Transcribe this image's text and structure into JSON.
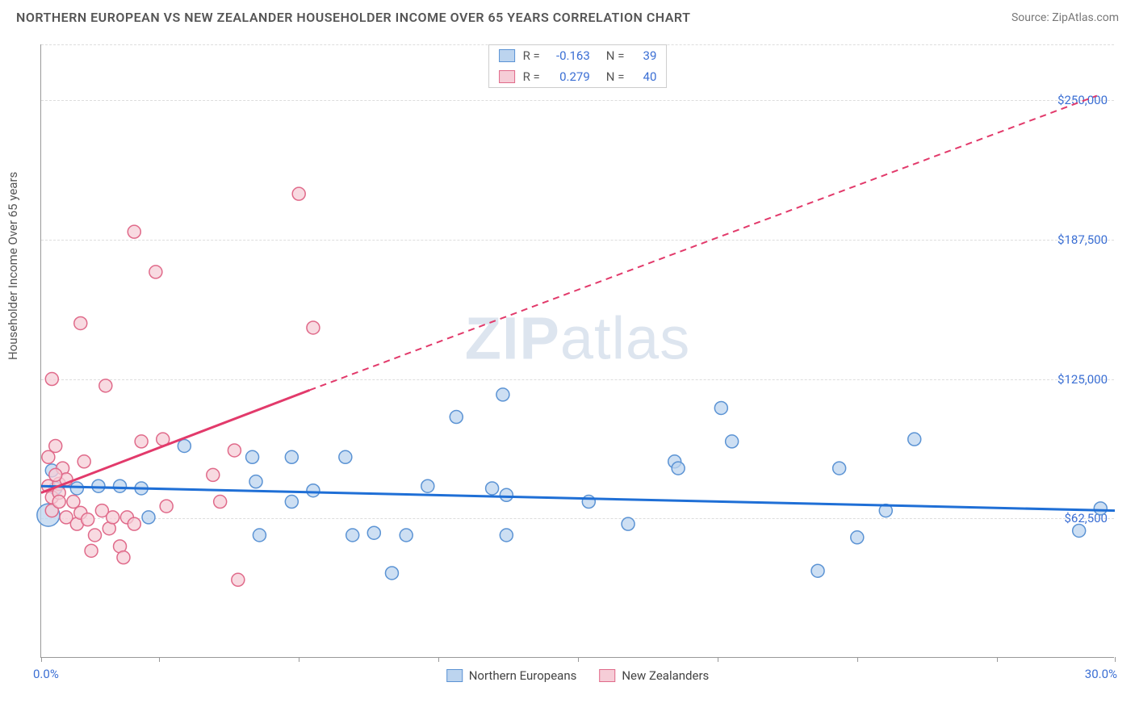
{
  "title": "NORTHERN EUROPEAN VS NEW ZEALANDER HOUSEHOLDER INCOME OVER 65 YEARS CORRELATION CHART",
  "source": "Source: ZipAtlas.com",
  "watermark_zip": "ZIP",
  "watermark_atlas": "atlas",
  "ylabel": "Householder Income Over 65 years",
  "chart": {
    "type": "scatter",
    "background_color": "#ffffff",
    "grid_color": "#dddddd",
    "axis_color": "#999999",
    "text_color": "#555555",
    "value_color": "#3b6fd4",
    "xlim": [
      0,
      30
    ],
    "ylim": [
      0,
      275000
    ],
    "x_tick_positions": [
      0,
      3.3,
      7.2,
      11.1,
      15.0,
      18.9,
      22.8,
      26.7,
      30
    ],
    "x_min_label": "0.0%",
    "x_max_label": "30.0%",
    "y_ticks": [
      {
        "v": 62500,
        "label": "$62,500"
      },
      {
        "v": 125000,
        "label": "$125,000"
      },
      {
        "v": 187500,
        "label": "$187,500"
      },
      {
        "v": 250000,
        "label": "$250,000"
      }
    ],
    "series": [
      {
        "name": "Northern Europeans",
        "fill": "#bcd4ef",
        "stroke": "#5b93d4",
        "line_color": "#1f6fd6",
        "line_width": 3,
        "line_dashed": false,
        "R": "-0.163",
        "N": "39",
        "trend": {
          "x1": 0,
          "y1": 77000,
          "x2": 30,
          "y2": 66000
        },
        "ext": {
          "x1": 30,
          "y1": 66000,
          "x2": 30,
          "y2": 66000
        },
        "points": [
          {
            "x": 0.2,
            "y": 64000,
            "r": 14
          },
          {
            "x": 0.4,
            "y": 76000,
            "r": 8
          },
          {
            "x": 0.3,
            "y": 84000,
            "r": 8
          },
          {
            "x": 4.0,
            "y": 95000,
            "r": 8
          },
          {
            "x": 3.0,
            "y": 63000,
            "r": 8
          },
          {
            "x": 1.0,
            "y": 76000,
            "r": 8
          },
          {
            "x": 1.6,
            "y": 77000,
            "r": 8
          },
          {
            "x": 2.2,
            "y": 77000,
            "r": 8
          },
          {
            "x": 2.8,
            "y": 76000,
            "r": 8
          },
          {
            "x": 5.9,
            "y": 90000,
            "r": 8
          },
          {
            "x": 6.0,
            "y": 79000,
            "r": 8
          },
          {
            "x": 6.1,
            "y": 55000,
            "r": 8
          },
          {
            "x": 7.0,
            "y": 90000,
            "r": 8
          },
          {
            "x": 7.0,
            "y": 70000,
            "r": 8
          },
          {
            "x": 7.6,
            "y": 75000,
            "r": 8
          },
          {
            "x": 8.5,
            "y": 90000,
            "r": 8
          },
          {
            "x": 8.7,
            "y": 55000,
            "r": 8
          },
          {
            "x": 9.3,
            "y": 56000,
            "r": 8
          },
          {
            "x": 9.8,
            "y": 38000,
            "r": 8
          },
          {
            "x": 10.2,
            "y": 55000,
            "r": 8
          },
          {
            "x": 10.8,
            "y": 77000,
            "r": 8
          },
          {
            "x": 11.6,
            "y": 108000,
            "r": 8
          },
          {
            "x": 12.6,
            "y": 76000,
            "r": 8
          },
          {
            "x": 12.9,
            "y": 118000,
            "r": 8
          },
          {
            "x": 13.0,
            "y": 73000,
            "r": 8
          },
          {
            "x": 13.0,
            "y": 55000,
            "r": 8
          },
          {
            "x": 15.3,
            "y": 70000,
            "r": 8
          },
          {
            "x": 16.4,
            "y": 60000,
            "r": 8
          },
          {
            "x": 17.7,
            "y": 88000,
            "r": 8
          },
          {
            "x": 17.8,
            "y": 85000,
            "r": 8
          },
          {
            "x": 19.0,
            "y": 112000,
            "r": 8
          },
          {
            "x": 19.3,
            "y": 97000,
            "r": 8
          },
          {
            "x": 21.7,
            "y": 39000,
            "r": 8
          },
          {
            "x": 22.3,
            "y": 85000,
            "r": 8
          },
          {
            "x": 22.8,
            "y": 54000,
            "r": 8
          },
          {
            "x": 23.6,
            "y": 66000,
            "r": 8
          },
          {
            "x": 24.4,
            "y": 98000,
            "r": 8
          },
          {
            "x": 29.0,
            "y": 57000,
            "r": 8
          },
          {
            "x": 29.6,
            "y": 67000,
            "r": 8
          }
        ]
      },
      {
        "name": "New Zealanders",
        "fill": "#f6cdd7",
        "stroke": "#e06a8a",
        "line_color": "#e23a6b",
        "line_width": 3,
        "line_dashed": false,
        "R": "0.279",
        "N": "40",
        "trend": {
          "x1": 0,
          "y1": 74000,
          "x2": 7.5,
          "y2": 120000
        },
        "ext": {
          "x1": 7.5,
          "y1": 120000,
          "x2": 29.5,
          "y2": 252000
        },
        "points": [
          {
            "x": 0.2,
            "y": 77000,
            "r": 8
          },
          {
            "x": 0.2,
            "y": 90000,
            "r": 8
          },
          {
            "x": 0.3,
            "y": 125000,
            "r": 8
          },
          {
            "x": 0.3,
            "y": 72000,
            "r": 8
          },
          {
            "x": 0.3,
            "y": 66000,
            "r": 8
          },
          {
            "x": 0.4,
            "y": 95000,
            "r": 8
          },
          {
            "x": 0.5,
            "y": 78000,
            "r": 8
          },
          {
            "x": 0.5,
            "y": 74000,
            "r": 8
          },
          {
            "x": 0.5,
            "y": 70000,
            "r": 8
          },
          {
            "x": 0.6,
            "y": 85000,
            "r": 8
          },
          {
            "x": 0.7,
            "y": 80000,
            "r": 8
          },
          {
            "x": 0.7,
            "y": 63000,
            "r": 8
          },
          {
            "x": 0.9,
            "y": 70000,
            "r": 8
          },
          {
            "x": 1.0,
            "y": 60000,
            "r": 8
          },
          {
            "x": 1.1,
            "y": 65000,
            "r": 8
          },
          {
            "x": 1.1,
            "y": 150000,
            "r": 8
          },
          {
            "x": 1.3,
            "y": 62000,
            "r": 8
          },
          {
            "x": 1.4,
            "y": 48000,
            "r": 8
          },
          {
            "x": 1.5,
            "y": 55000,
            "r": 8
          },
          {
            "x": 1.7,
            "y": 66000,
            "r": 8
          },
          {
            "x": 1.8,
            "y": 122000,
            "r": 8
          },
          {
            "x": 1.9,
            "y": 58000,
            "r": 8
          },
          {
            "x": 2.0,
            "y": 63000,
            "r": 8
          },
          {
            "x": 2.2,
            "y": 50000,
            "r": 8
          },
          {
            "x": 2.3,
            "y": 45000,
            "r": 8
          },
          {
            "x": 2.4,
            "y": 63000,
            "r": 8
          },
          {
            "x": 2.6,
            "y": 191000,
            "r": 8
          },
          {
            "x": 2.6,
            "y": 60000,
            "r": 8
          },
          {
            "x": 2.8,
            "y": 97000,
            "r": 8
          },
          {
            "x": 3.2,
            "y": 173000,
            "r": 8
          },
          {
            "x": 3.4,
            "y": 98000,
            "r": 8
          },
          {
            "x": 3.5,
            "y": 68000,
            "r": 8
          },
          {
            "x": 4.8,
            "y": 82000,
            "r": 8
          },
          {
            "x": 5.0,
            "y": 70000,
            "r": 8
          },
          {
            "x": 5.4,
            "y": 93000,
            "r": 8
          },
          {
            "x": 5.5,
            "y": 35000,
            "r": 8
          },
          {
            "x": 7.2,
            "y": 208000,
            "r": 8
          },
          {
            "x": 7.6,
            "y": 148000,
            "r": 8
          },
          {
            "x": 1.2,
            "y": 88000,
            "r": 8
          },
          {
            "x": 0.4,
            "y": 82000,
            "r": 8
          }
        ]
      }
    ],
    "stats_labels": {
      "R": "R =",
      "N": "N ="
    }
  },
  "legend": [
    {
      "label": "Northern Europeans",
      "fill": "#bcd4ef",
      "stroke": "#5b93d4"
    },
    {
      "label": "New Zealanders",
      "fill": "#f6cdd7",
      "stroke": "#e06a8a"
    }
  ]
}
